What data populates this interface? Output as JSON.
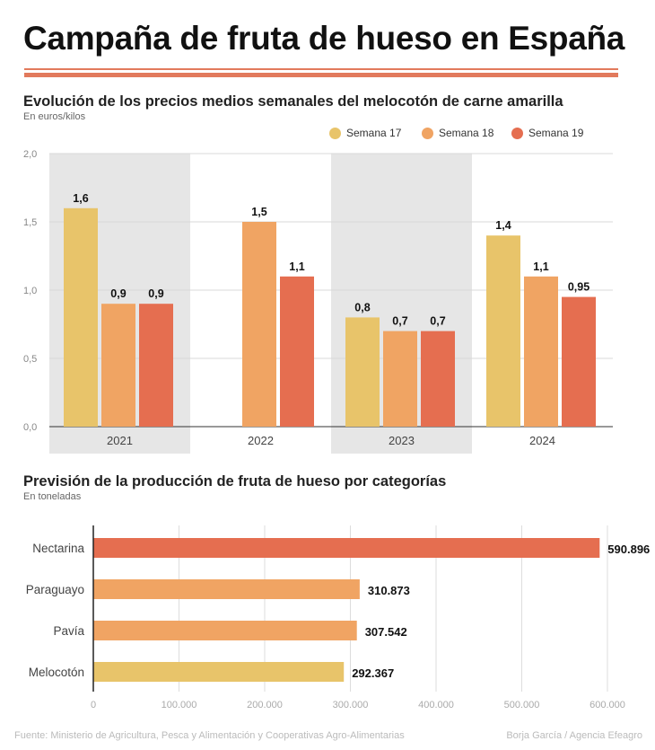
{
  "title": "Campaña de fruta de hueso en España",
  "colors": {
    "semana17": "#e8c46a",
    "semana18": "#f0a463",
    "semana19": "#e56e50",
    "rule": "#e27a5c",
    "band": "#e6e6e6"
  },
  "chart_data": [
    {
      "type": "bar",
      "title": "Evolución de los precios medios semanales del melocotón de carne amarilla",
      "subtitle": "En euros/kilos",
      "categories": [
        "2021",
        "2022",
        "2023",
        "2024"
      ],
      "series": [
        {
          "name": "Semana 17",
          "values": [
            1.6,
            null,
            0.8,
            1.4
          ],
          "labels": [
            "1,6",
            null,
            "0,8",
            "1,4"
          ]
        },
        {
          "name": "Semana 18",
          "values": [
            0.9,
            1.5,
            0.7,
            1.1
          ],
          "labels": [
            "0,9",
            "1,5",
            "0,7",
            "1,1"
          ]
        },
        {
          "name": "Semana 19",
          "values": [
            0.9,
            1.1,
            0.7,
            0.95
          ],
          "labels": [
            "0,9",
            "1,1",
            "0,7",
            "0,95"
          ]
        }
      ],
      "ylim": [
        0,
        2
      ],
      "yticks": [
        0,
        0.5,
        1,
        1.5,
        2
      ],
      "ytick_labels": [
        "0,0",
        "0,5",
        "1,0",
        "1,5",
        "2,0"
      ],
      "grid": true,
      "legend": "top-right"
    },
    {
      "type": "bar",
      "orientation": "horizontal",
      "title": "Previsión de la producción de fruta de hueso por categorías",
      "subtitle": "En toneladas",
      "categories": [
        "Nectarina",
        "Paraguayo",
        "Pavía",
        "Melocotón"
      ],
      "values": [
        590896,
        310873,
        307542,
        292367
      ],
      "value_labels": [
        "590.896",
        "310.873",
        "307.542",
        "292.367"
      ],
      "bar_colors": [
        "#e56e50",
        "#f0a463",
        "#f0a463",
        "#e8c46a"
      ],
      "xlim": [
        0,
        600000
      ],
      "xticks": [
        0,
        100000,
        200000,
        300000,
        400000,
        500000,
        600000
      ],
      "xtick_labels": [
        "0",
        "100.000",
        "200.000",
        "300.000",
        "400.000",
        "500.000",
        "600.000"
      ],
      "grid": true
    }
  ],
  "footer": {
    "source": "Fuente: Ministerio de Agricultura, Pesca y Alimentación y Cooperativas Agro-Alimentarias",
    "credit": "Borja García / Agencia Efeagro"
  }
}
